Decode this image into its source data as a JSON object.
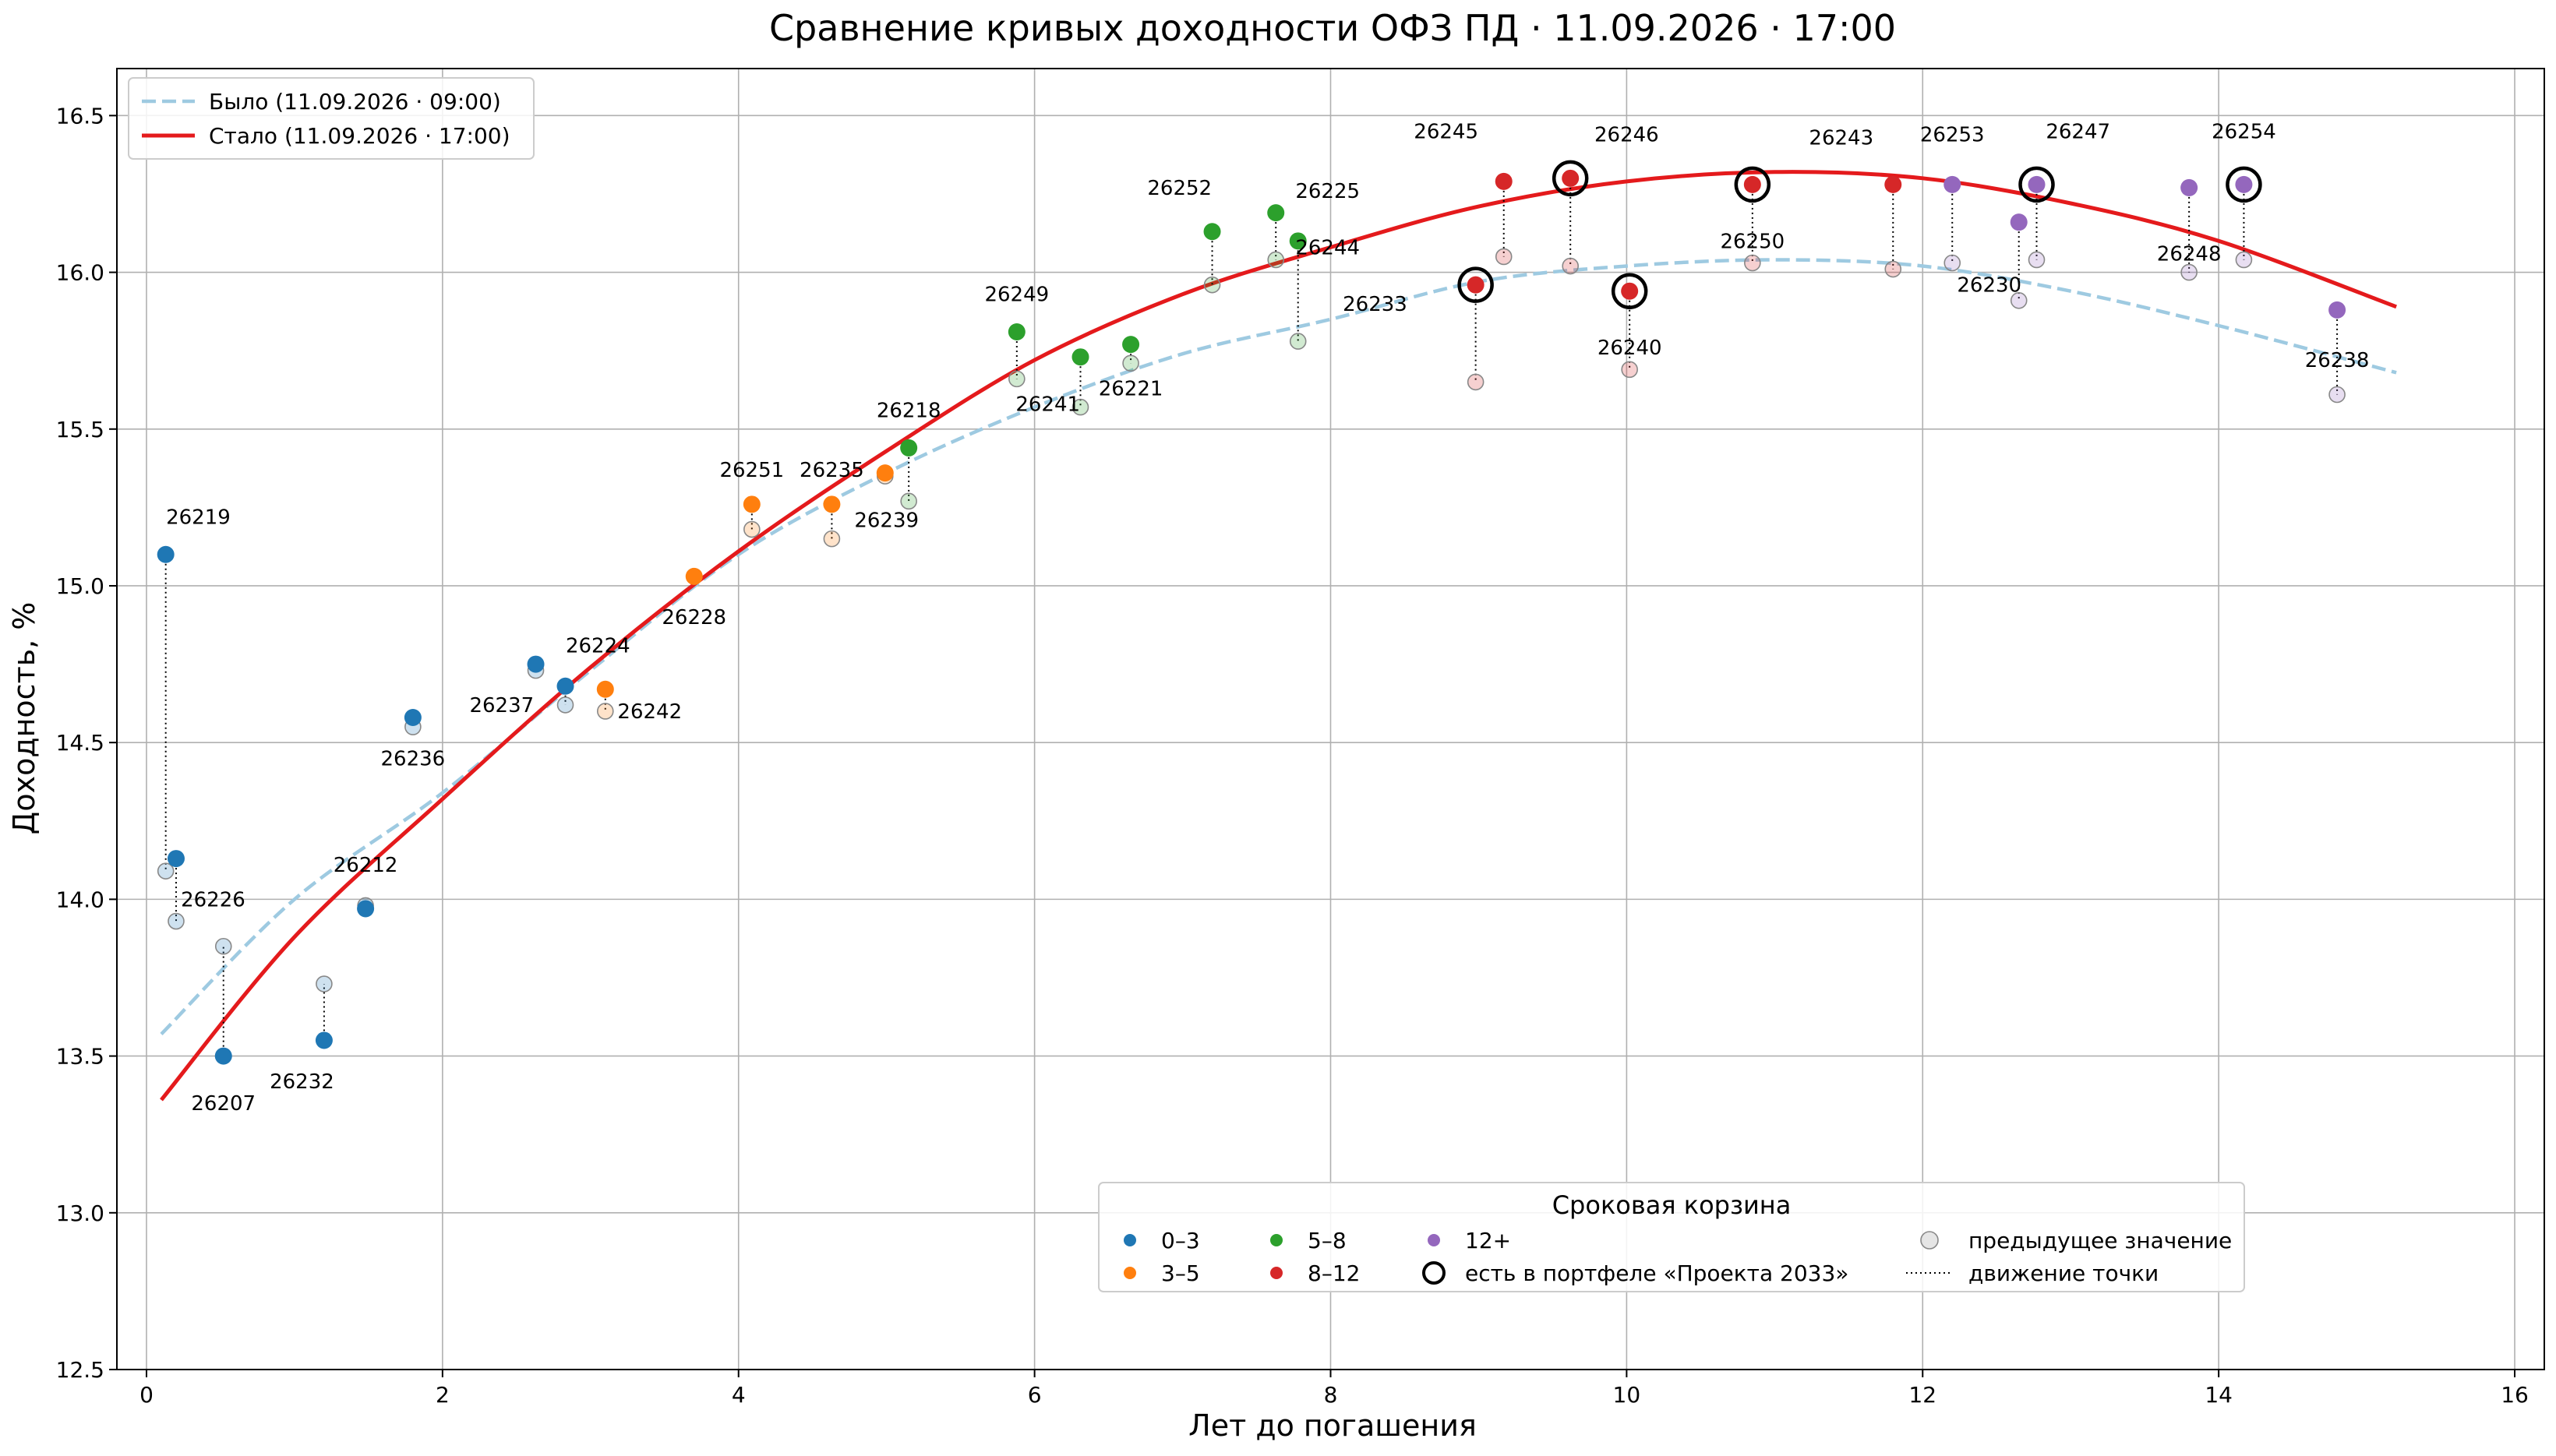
{
  "chart_data": {
    "type": "scatter",
    "title": "Сравнение кривых доходности ОФЗ ПД · 11.09.2026 · 17:00",
    "xlabel": "Лет до погашения",
    "ylabel": "Доходность, %",
    "xlim": [
      -0.2,
      16.2
    ],
    "ylim": [
      12.5,
      16.65
    ],
    "xticks": [
      0,
      2,
      4,
      6,
      8,
      10,
      12,
      14,
      16
    ],
    "yticks": [
      12.5,
      13.0,
      13.5,
      14.0,
      14.5,
      15.0,
      15.5,
      16.0,
      16.5
    ],
    "xtick_labels": [
      "0",
      "2",
      "4",
      "6",
      "8",
      "10",
      "12",
      "14",
      "16"
    ],
    "ytick_labels": [
      "12.5",
      "13.0",
      "13.5",
      "14.0",
      "14.5",
      "15.0",
      "15.5",
      "16.0",
      "16.5"
    ],
    "grid": true,
    "curves": [
      {
        "name": "Было (11.09.2026 · 09:00)",
        "style": "dashed",
        "color": "#9ecae1",
        "x": [
          0.1,
          1.0,
          2.0,
          3.0,
          4.0,
          5.0,
          6.0,
          7.0,
          8.0,
          9.0,
          10.0,
          11.0,
          12.0,
          13.0,
          14.0,
          15.2
        ],
        "y": [
          13.57,
          14.0,
          14.34,
          14.73,
          15.1,
          15.36,
          15.57,
          15.74,
          15.85,
          15.97,
          16.02,
          16.04,
          16.02,
          15.94,
          15.83,
          15.68
        ]
      },
      {
        "name": "Стало (11.09.2026 · 17:00)",
        "style": "solid",
        "color": "#e41a1c",
        "x": [
          0.1,
          1.0,
          2.0,
          3.0,
          4.0,
          5.0,
          6.0,
          7.0,
          8.0,
          9.0,
          10.0,
          11.0,
          12.0,
          13.0,
          14.0,
          15.2
        ],
        "y": [
          13.36,
          13.88,
          14.32,
          14.74,
          15.11,
          15.43,
          15.72,
          15.93,
          16.08,
          16.21,
          16.29,
          16.32,
          16.3,
          16.22,
          16.1,
          15.89
        ]
      }
    ],
    "buckets": [
      {
        "name": "0–3",
        "color": "#1f77b4"
      },
      {
        "name": "3–5",
        "color": "#ff7f0e"
      },
      {
        "name": "5–8",
        "color": "#2ca02c"
      },
      {
        "name": "8–12",
        "color": "#d62728"
      },
      {
        "name": "12+",
        "color": "#9467bd"
      }
    ],
    "points": [
      {
        "name": "26219",
        "x": 0.13,
        "y": 15.1,
        "prev": 14.09,
        "bucket": 0,
        "lx": 0.35,
        "ly": 15.22,
        "portfolio": false
      },
      {
        "name": "26226",
        "x": 0.2,
        "y": 14.13,
        "prev": 13.93,
        "bucket": 0,
        "lx": 0.45,
        "ly": 14.0,
        "portfolio": false
      },
      {
        "name": "26207",
        "x": 0.52,
        "y": 13.5,
        "prev": 13.85,
        "bucket": 0,
        "lx": 0.52,
        "ly": 13.35,
        "portfolio": false
      },
      {
        "name": "26232",
        "x": 1.2,
        "y": 13.55,
        "prev": 13.73,
        "bucket": 0,
        "lx": 1.05,
        "ly": 13.42,
        "portfolio": false
      },
      {
        "name": "26212",
        "x": 1.48,
        "y": 13.97,
        "prev": 13.98,
        "bucket": 0,
        "lx": 1.48,
        "ly": 14.11,
        "portfolio": false
      },
      {
        "name": "26236",
        "x": 1.8,
        "y": 14.58,
        "prev": 14.55,
        "bucket": 0,
        "lx": 1.8,
        "ly": 14.45,
        "portfolio": false
      },
      {
        "name": "26237",
        "x": 2.63,
        "y": 14.75,
        "prev": 14.73,
        "bucket": 0,
        "lx": 2.4,
        "ly": 14.62,
        "portfolio": false
      },
      {
        "name": "26224",
        "x": 2.83,
        "y": 14.68,
        "prev": 14.62,
        "bucket": 0,
        "lx": 3.05,
        "ly": 14.81,
        "portfolio": false
      },
      {
        "name": "26242",
        "x": 3.1,
        "y": 14.67,
        "prev": 14.6,
        "bucket": 1,
        "lx": 3.4,
        "ly": 14.6,
        "portfolio": false
      },
      {
        "name": "26228",
        "x": 3.7,
        "y": 15.03,
        "prev": 15.03,
        "bucket": 1,
        "lx": 3.7,
        "ly": 14.9,
        "portfolio": false
      },
      {
        "name": "26251",
        "x": 4.09,
        "y": 15.26,
        "prev": 15.18,
        "bucket": 1,
        "lx": 4.09,
        "ly": 15.37,
        "portfolio": false
      },
      {
        "name": "26235",
        "x": 4.63,
        "y": 15.26,
        "prev": 15.15,
        "bucket": 1,
        "lx": 4.63,
        "ly": 15.37,
        "portfolio": false
      },
      {
        "name": "26239",
        "x": 4.99,
        "y": 15.36,
        "prev": 15.35,
        "bucket": 1,
        "lx": 5.0,
        "ly": 15.21,
        "portfolio": false
      },
      {
        "name": "26218",
        "x": 5.15,
        "y": 15.44,
        "prev": 15.27,
        "bucket": 2,
        "lx": 5.15,
        "ly": 15.56,
        "portfolio": false
      },
      {
        "name": "26249",
        "x": 5.88,
        "y": 15.81,
        "prev": 15.66,
        "bucket": 2,
        "lx": 5.88,
        "ly": 15.93,
        "portfolio": false
      },
      {
        "name": "26241",
        "x": 6.31,
        "y": 15.73,
        "prev": 15.57,
        "bucket": 2,
        "lx": 6.09,
        "ly": 15.58,
        "portfolio": false
      },
      {
        "name": "26221",
        "x": 6.65,
        "y": 15.77,
        "prev": 15.71,
        "bucket": 2,
        "lx": 6.65,
        "ly": 15.63,
        "portfolio": false
      },
      {
        "name": "26252",
        "x": 7.2,
        "y": 16.13,
        "prev": 15.96,
        "bucket": 2,
        "lx": 6.98,
        "ly": 16.27,
        "portfolio": false
      },
      {
        "name": "26225",
        "x": 7.63,
        "y": 16.19,
        "prev": 16.04,
        "bucket": 2,
        "lx": 7.98,
        "ly": 16.26,
        "portfolio": false
      },
      {
        "name": "26244",
        "x": 7.78,
        "y": 16.1,
        "prev": 15.78,
        "bucket": 2,
        "lx": 7.98,
        "ly": 16.08,
        "portfolio": false
      },
      {
        "name": "26233",
        "x": 8.98,
        "y": 15.96,
        "prev": 15.65,
        "bucket": 3,
        "lx": 8.3,
        "ly": 15.9,
        "portfolio": true
      },
      {
        "name": "26245",
        "x": 9.17,
        "y": 16.29,
        "prev": 16.05,
        "bucket": 3,
        "lx": 8.78,
        "ly": 16.45,
        "portfolio": false
      },
      {
        "name": "26246",
        "x": 9.62,
        "y": 16.3,
        "prev": 16.02,
        "bucket": 3,
        "lx": 10.0,
        "ly": 16.44,
        "portfolio": true
      },
      {
        "name": "26240",
        "x": 10.02,
        "y": 15.94,
        "prev": 15.69,
        "bucket": 3,
        "lx": 10.02,
        "ly": 15.76,
        "portfolio": true
      },
      {
        "name": "26250",
        "x": 10.85,
        "y": 16.28,
        "prev": 16.03,
        "bucket": 3,
        "lx": 10.85,
        "ly": 16.1,
        "portfolio": true
      },
      {
        "name": "26243",
        "x": 11.8,
        "y": 16.28,
        "prev": 16.01,
        "bucket": 3,
        "lx": 11.45,
        "ly": 16.43,
        "portfolio": false
      },
      {
        "name": "26253",
        "x": 12.2,
        "y": 16.28,
        "prev": 16.03,
        "bucket": 4,
        "lx": 12.2,
        "ly": 16.44,
        "portfolio": false
      },
      {
        "name": "26230",
        "x": 12.65,
        "y": 16.16,
        "prev": 15.91,
        "bucket": 4,
        "lx": 12.45,
        "ly": 15.96,
        "portfolio": false
      },
      {
        "name": "26247",
        "x": 12.77,
        "y": 16.28,
        "prev": 16.04,
        "bucket": 4,
        "lx": 13.05,
        "ly": 16.45,
        "portfolio": true
      },
      {
        "name": "26248",
        "x": 13.8,
        "y": 16.27,
        "prev": 16.0,
        "bucket": 4,
        "lx": 13.8,
        "ly": 16.06,
        "portfolio": false
      },
      {
        "name": "26254",
        "x": 14.17,
        "y": 16.28,
        "prev": 16.04,
        "bucket": 4,
        "lx": 14.17,
        "ly": 16.45,
        "portfolio": true
      },
      {
        "name": "26238",
        "x": 14.8,
        "y": 15.88,
        "prev": 15.61,
        "bucket": 4,
        "lx": 14.8,
        "ly": 15.72,
        "portfolio": false
      }
    ],
    "legend_top": {
      "placement": "top-left",
      "entries": [
        "Было (11.09.2026 · 09:00)",
        "Стало (11.09.2026 · 17:00)"
      ]
    },
    "legend_bottom": {
      "placement": "lower-center",
      "title": "Сроковая корзина",
      "portfolio_label": "есть в портфеле «Проекта 2033»",
      "prev_label": "предыдущее значение",
      "move_label": "движение точки"
    }
  }
}
